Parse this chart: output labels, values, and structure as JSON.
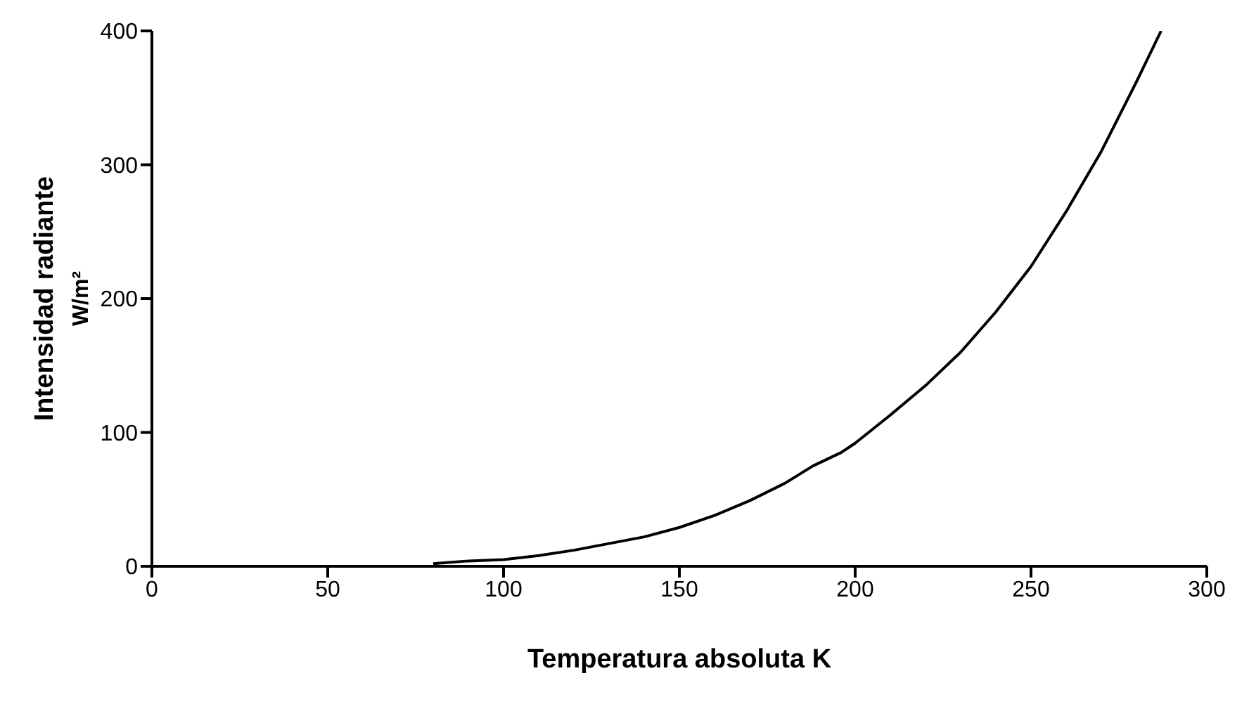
{
  "chart_data": {
    "type": "line",
    "xlabel": "Temperatura absoluta K",
    "ylabel": "Intensidad radiante\nW/m²",
    "x": [
      80,
      90,
      100,
      110,
      120,
      130,
      140,
      150,
      160,
      170,
      180,
      188,
      196,
      200,
      210,
      220,
      230,
      240,
      250,
      260,
      270,
      280,
      287
    ],
    "series": [
      {
        "color": "#000000",
        "values": [
          2,
          4,
          5,
          8,
          12,
          17,
          22,
          29,
          38,
          49,
          62,
          75,
          85,
          92,
          113,
          135,
          160,
          190,
          224,
          265,
          310,
          362,
          400
        ]
      }
    ],
    "xlim": [
      0,
      300
    ],
    "xticks": [
      0,
      50,
      100,
      150,
      200,
      250,
      300
    ],
    "ylim": [
      0,
      400
    ],
    "yticks": [
      0,
      100,
      200,
      300,
      400
    ],
    "grid": false,
    "legend": false,
    "marker": "none",
    "line_style": "solid"
  }
}
